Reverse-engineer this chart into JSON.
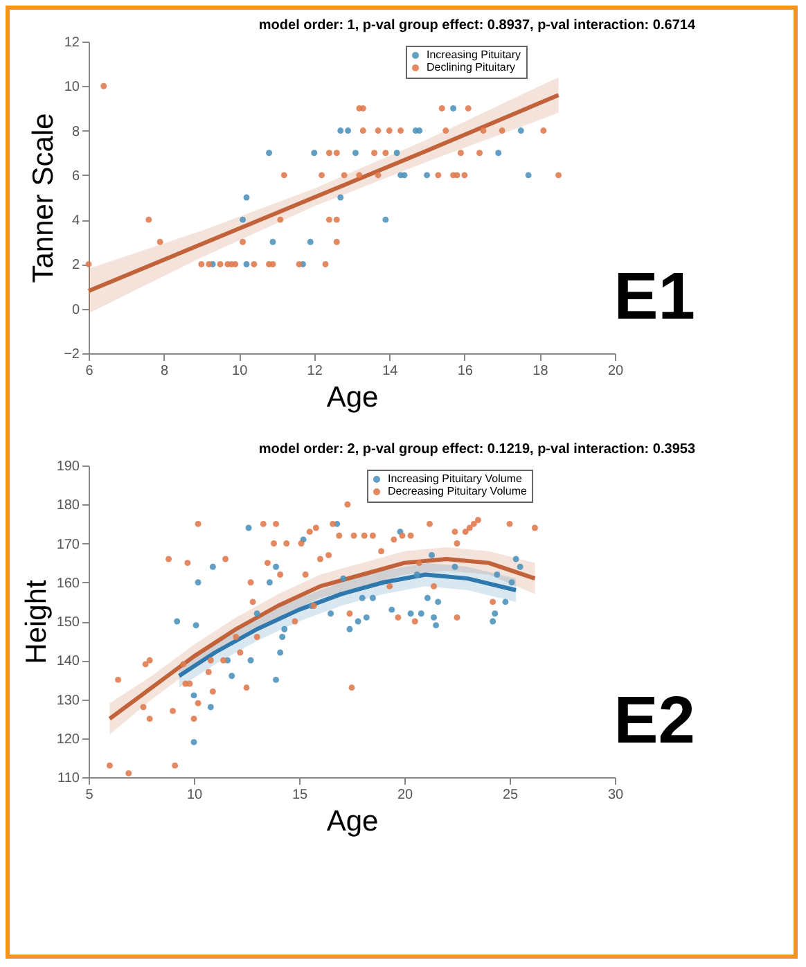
{
  "chart_data": [
    {
      "type": "scatter",
      "title": "model order: 1,   p-val group effect: 0.8937,   p-val interaction: 0.6714",
      "xlabel": "Age",
      "ylabel": "Tanner Scale",
      "xlim": [
        6,
        20
      ],
      "ylim": [
        -2,
        12
      ],
      "xticks": [
        6,
        8,
        10,
        12,
        14,
        16,
        18,
        20
      ],
      "yticks": [
        -2,
        0,
        2,
        4,
        6,
        8,
        10,
        12
      ],
      "grid": false,
      "legend": "top right",
      "annotations": [
        "E1"
      ],
      "series": [
        {
          "name": "Increasing Pituitary",
          "type": "scatter",
          "marker": "circle",
          "color": "#4f93bd",
          "x": [
            9.3,
            10.2,
            10.1,
            10.2,
            10.9,
            10.8,
            11.7,
            11.9,
            12,
            12.7,
            12.7,
            12.9,
            13.1,
            13.9,
            14.2,
            14.3,
            14.4,
            14.7,
            14.8,
            15,
            15.7,
            16.9,
            17.5,
            17.7
          ],
          "values": [
            2,
            2,
            4,
            5,
            3,
            7,
            2,
            3,
            7,
            5,
            8,
            8,
            7,
            4,
            7,
            6,
            6,
            8,
            8,
            6,
            9,
            7,
            8,
            6
          ]
        },
        {
          "name": "Declining Pituitary",
          "type": "scatter",
          "marker": "circle",
          "color": "#e07b4f",
          "x": [
            6,
            6.4,
            7.6,
            7.9,
            9,
            9.2,
            9.5,
            9.7,
            9.8,
            9.9,
            10.1,
            10.4,
            10.8,
            10.9,
            11.1,
            11.2,
            11.6,
            12.2,
            12.3,
            12.4,
            12.4,
            12.6,
            12.6,
            12.6,
            12.8,
            13.2,
            13.3,
            13.2,
            13.3,
            13.6,
            13.7,
            13.9,
            14,
            14.3,
            13.7,
            15.3,
            15.4,
            15.5,
            15.7,
            15.8,
            15.9,
            16,
            16.1,
            16.4,
            16.5,
            17,
            18.1,
            18.5
          ],
          "values": [
            2,
            10,
            4,
            3,
            2,
            2,
            2,
            2,
            2,
            2,
            3,
            2,
            2,
            2,
            4,
            6,
            2,
            6,
            2,
            4,
            7,
            3,
            4,
            7,
            6,
            9,
            9,
            6,
            8,
            7,
            8,
            7,
            8,
            8,
            6,
            6,
            9,
            8,
            6,
            6,
            7,
            6,
            9,
            7,
            8,
            8,
            8,
            6
          ]
        },
        {
          "type": "line",
          "line_style": "solid",
          "color": "#c2623a",
          "x": [
            6,
            9,
            12,
            15,
            18.5
          ],
          "values": [
            0.8,
            2.9,
            5.0,
            7.1,
            9.6
          ],
          "lower": [
            -0.2,
            2.3,
            4.6,
            6.6,
            8.8
          ],
          "upper": [
            1.8,
            3.5,
            5.4,
            7.6,
            10.4
          ]
        }
      ]
    },
    {
      "type": "scatter",
      "title": "model order: 2,   p-val group effect: 0.1219,   p-val interaction: 0.3953",
      "xlabel": "Age",
      "ylabel": "Height",
      "xlim": [
        5,
        30
      ],
      "ylim": [
        110,
        190
      ],
      "xticks": [
        5,
        10,
        15,
        20,
        25,
        30
      ],
      "yticks": [
        110,
        120,
        130,
        140,
        150,
        160,
        170,
        180,
        190
      ],
      "grid": false,
      "legend": "top right",
      "annotations": [
        "E2"
      ],
      "series": [
        {
          "name": "Increasing Pituitary Volume",
          "type": "scatter",
          "marker": "circle",
          "color": "#4f93bd",
          "x": [
            9.2,
            10,
            10,
            10.2,
            10.1,
            10.9,
            10.8,
            11.8,
            11.6,
            12.6,
            12.7,
            13,
            13.6,
            13.9,
            13.9,
            14.1,
            14.2,
            14.3,
            15.2,
            15.6,
            16.5,
            16.8,
            17.1,
            17.4,
            17.8,
            18,
            18.2,
            18.5,
            19.4,
            19.8,
            20.3,
            20.6,
            20.8,
            21.1,
            21.3,
            21.4,
            21.5,
            21.6,
            22.4,
            24.2,
            24.3,
            24.4,
            24.8,
            25.1,
            25.3,
            25.5
          ],
          "values": [
            150,
            119,
            131,
            160,
            149,
            164,
            128,
            136,
            140,
            174,
            140,
            152,
            160,
            135,
            164,
            142,
            146,
            148,
            171,
            154,
            152,
            175,
            161,
            148,
            150,
            156,
            151,
            156,
            153,
            173,
            152,
            162,
            152,
            156,
            167,
            151,
            149,
            155,
            164,
            150,
            152,
            162,
            155,
            160,
            166,
            164
          ]
        },
        {
          "name": "Decreasing Pituitary Volume",
          "type": "scatter",
          "marker": "circle",
          "color": "#e07b4f",
          "x": [
            6,
            6.4,
            6.9,
            7.6,
            7.7,
            7.9,
            7.9,
            8.8,
            9,
            9.1,
            9.5,
            9.6,
            9.7,
            9.8,
            10,
            10.2,
            10.2,
            10.7,
            10.8,
            10.9,
            11.4,
            11.5,
            12,
            12.2,
            12.5,
            12.7,
            12.8,
            13,
            13.3,
            13.5,
            13.8,
            13.9,
            14.1,
            14.4,
            14.8,
            15.1,
            15.3,
            15.5,
            15.7,
            15.8,
            16,
            16.4,
            16.6,
            16.9,
            17.3,
            17.4,
            17.5,
            17.6,
            18.1,
            18.5,
            18.9,
            19.3,
            19.5,
            19.7,
            19.9,
            20.3,
            20.5,
            20.7,
            21.2,
            21.4,
            22.4,
            22.5,
            22.5,
            22.9,
            23.1,
            23.3,
            23.5,
            24.2,
            25,
            26.2
          ],
          "values": [
            113,
            135,
            111,
            128,
            139,
            125,
            140,
            166,
            127,
            113,
            139,
            134,
            165,
            134,
            125,
            175,
            129,
            137,
            140,
            132,
            140,
            166,
            146,
            142,
            133,
            160,
            155,
            146,
            175,
            165,
            170,
            175,
            162,
            170,
            150,
            170,
            162,
            173,
            154,
            174,
            166,
            167,
            175,
            172,
            180,
            152,
            133,
            172,
            172,
            172,
            168,
            159,
            171,
            151,
            172,
            172,
            150,
            165,
            175,
            159,
            173,
            151,
            170,
            173,
            174,
            175,
            176,
            155,
            175,
            174
          ]
        },
        {
          "type": "line",
          "line_style": "solid",
          "color": "#c2623a",
          "x": [
            6,
            8,
            10,
            12,
            14,
            16,
            18,
            20,
            22,
            24,
            26.2
          ],
          "values": [
            125,
            133,
            141,
            148,
            154,
            159,
            162,
            165,
            166,
            165,
            161
          ],
          "lower": [
            121,
            130,
            138,
            145,
            151,
            156,
            159,
            162,
            163,
            162,
            157
          ],
          "upper": [
            129,
            136,
            144,
            151,
            157,
            162,
            165,
            168,
            169,
            168,
            165
          ]
        },
        {
          "type": "line",
          "line_style": "solid",
          "color": "#2f78ad",
          "x": [
            9.3,
            11,
            13,
            15,
            17,
            19,
            21,
            23,
            25.3
          ],
          "values": [
            136,
            142,
            148,
            153,
            157,
            160,
            162,
            161,
            158
          ],
          "lower": [
            133,
            139,
            145,
            150,
            154,
            157,
            159,
            158,
            155
          ],
          "upper": [
            139,
            145,
            151,
            156,
            160,
            163,
            165,
            164,
            161
          ]
        }
      ]
    }
  ]
}
